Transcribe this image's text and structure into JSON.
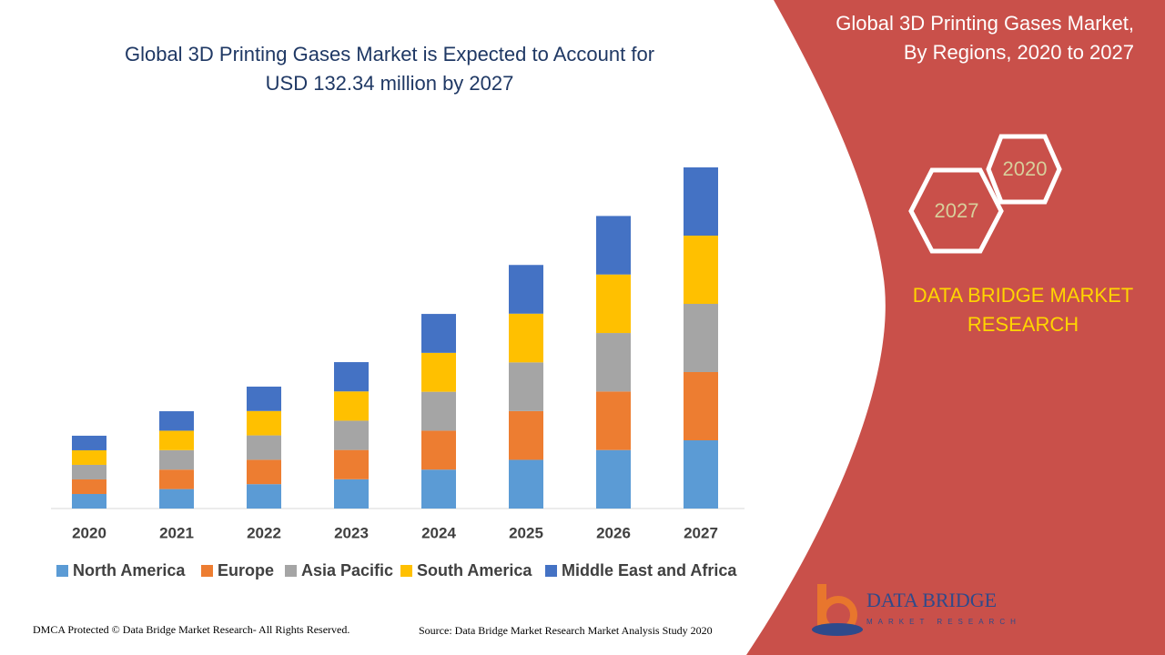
{
  "chart_data": {
    "type": "stacked-bar",
    "title": [
      "Global 3D Printing Gases Market is Expected to Account for",
      "USD 132.34 million by 2027"
    ],
    "categories": [
      "2020",
      "2021",
      "2022",
      "2023",
      "2024",
      "2025",
      "2026",
      "2027"
    ],
    "series": [
      {
        "name": "North America",
        "color": "#5b9bd5",
        "values": [
          5.65,
          7.55,
          9.46,
          11.36,
          15.1,
          18.9,
          22.7,
          26.47
        ]
      },
      {
        "name": "Europe",
        "color": "#ed7d31",
        "values": [
          5.65,
          7.55,
          9.46,
          11.36,
          15.1,
          18.9,
          22.7,
          26.47
        ]
      },
      {
        "name": "Asia Pacific",
        "color": "#a5a5a5",
        "values": [
          5.65,
          7.55,
          9.46,
          11.36,
          15.1,
          18.9,
          22.7,
          26.47
        ]
      },
      {
        "name": "South America",
        "color": "#ffc000",
        "values": [
          5.65,
          7.55,
          9.46,
          11.36,
          15.1,
          18.9,
          22.7,
          26.47
        ]
      },
      {
        "name": "Middle East and Africa",
        "color": "#4472c4",
        "values": [
          5.65,
          7.55,
          9.46,
          11.36,
          15.1,
          18.9,
          22.7,
          26.47
        ]
      }
    ],
    "legend": "bottom"
  },
  "panel": {
    "title": [
      "Global 3D Printing Gases Market,",
      "By Regions, 2020 to 2027"
    ],
    "hex_labels": [
      "2020",
      "2027"
    ],
    "brand": [
      "DATA BRIDGE MARKET",
      "RESEARCH"
    ]
  },
  "logo": {
    "name": "DATA BRIDGE",
    "tagline": "MARKET RESEARCH"
  },
  "footer": {
    "left": "DMCA Protected © Data Bridge Market Research- All Rights Reserved.",
    "right": "Source: Data Bridge Market Research Market Analysis Study 2020"
  }
}
